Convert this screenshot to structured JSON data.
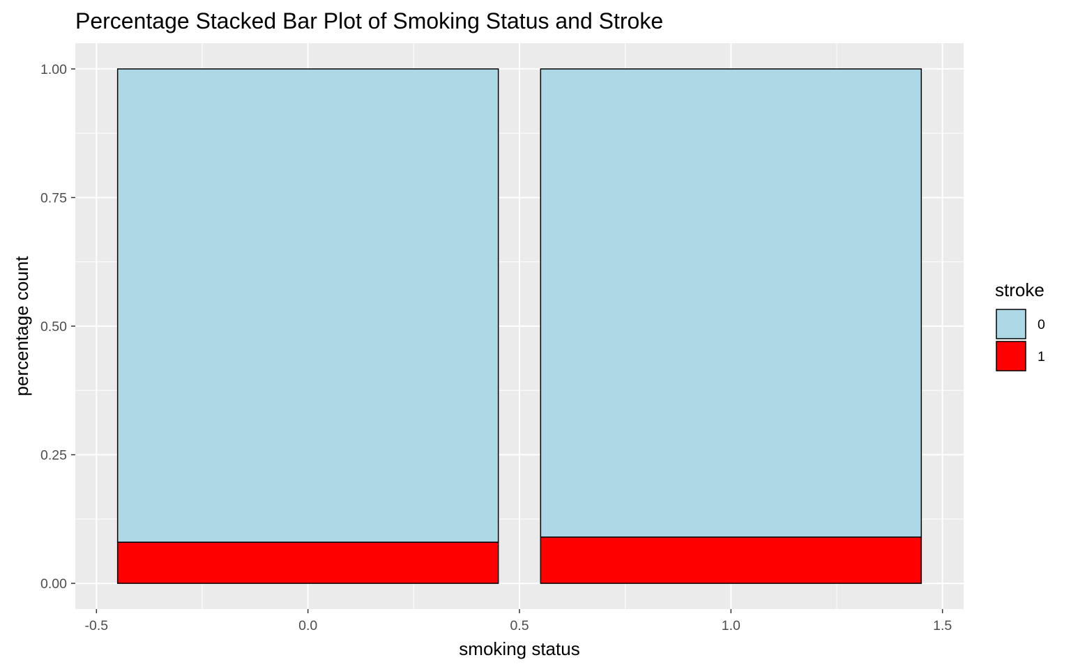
{
  "chart_data": {
    "type": "bar",
    "stacked": "percentage",
    "title": "Percentage Stacked Bar Plot of Smoking Status and Stroke",
    "xlabel": "smoking status",
    "ylabel": "percentage count",
    "x": [
      0,
      1
    ],
    "bar_width": 0.9,
    "xlim": [
      -0.55,
      1.55
    ],
    "ylim": [
      -0.05,
      1.05
    ],
    "xticks": [
      -0.5,
      0.0,
      0.5,
      1.0,
      1.5
    ],
    "xtick_labels": [
      "-0.5",
      "0.0",
      "0.5",
      "1.0",
      "1.5"
    ],
    "yticks": [
      0.0,
      0.25,
      0.5,
      0.75,
      1.0
    ],
    "ytick_labels": [
      "0.00",
      "0.25",
      "0.50",
      "0.75",
      "1.00"
    ],
    "series": [
      {
        "name": "1",
        "values": [
          0.08,
          0.09
        ],
        "color": "#ff0000"
      },
      {
        "name": "0",
        "values": [
          0.92,
          0.91
        ],
        "color": "#add8e6"
      }
    ],
    "legend": {
      "title": "stroke",
      "placement": "right",
      "entries": [
        {
          "label": "0",
          "color": "#add8e6"
        },
        {
          "label": "1",
          "color": "#ff0000"
        }
      ]
    },
    "grid": true,
    "panel_background": "#ebebeb",
    "grid_color": "#ffffff",
    "bar_outline": "#000000"
  }
}
